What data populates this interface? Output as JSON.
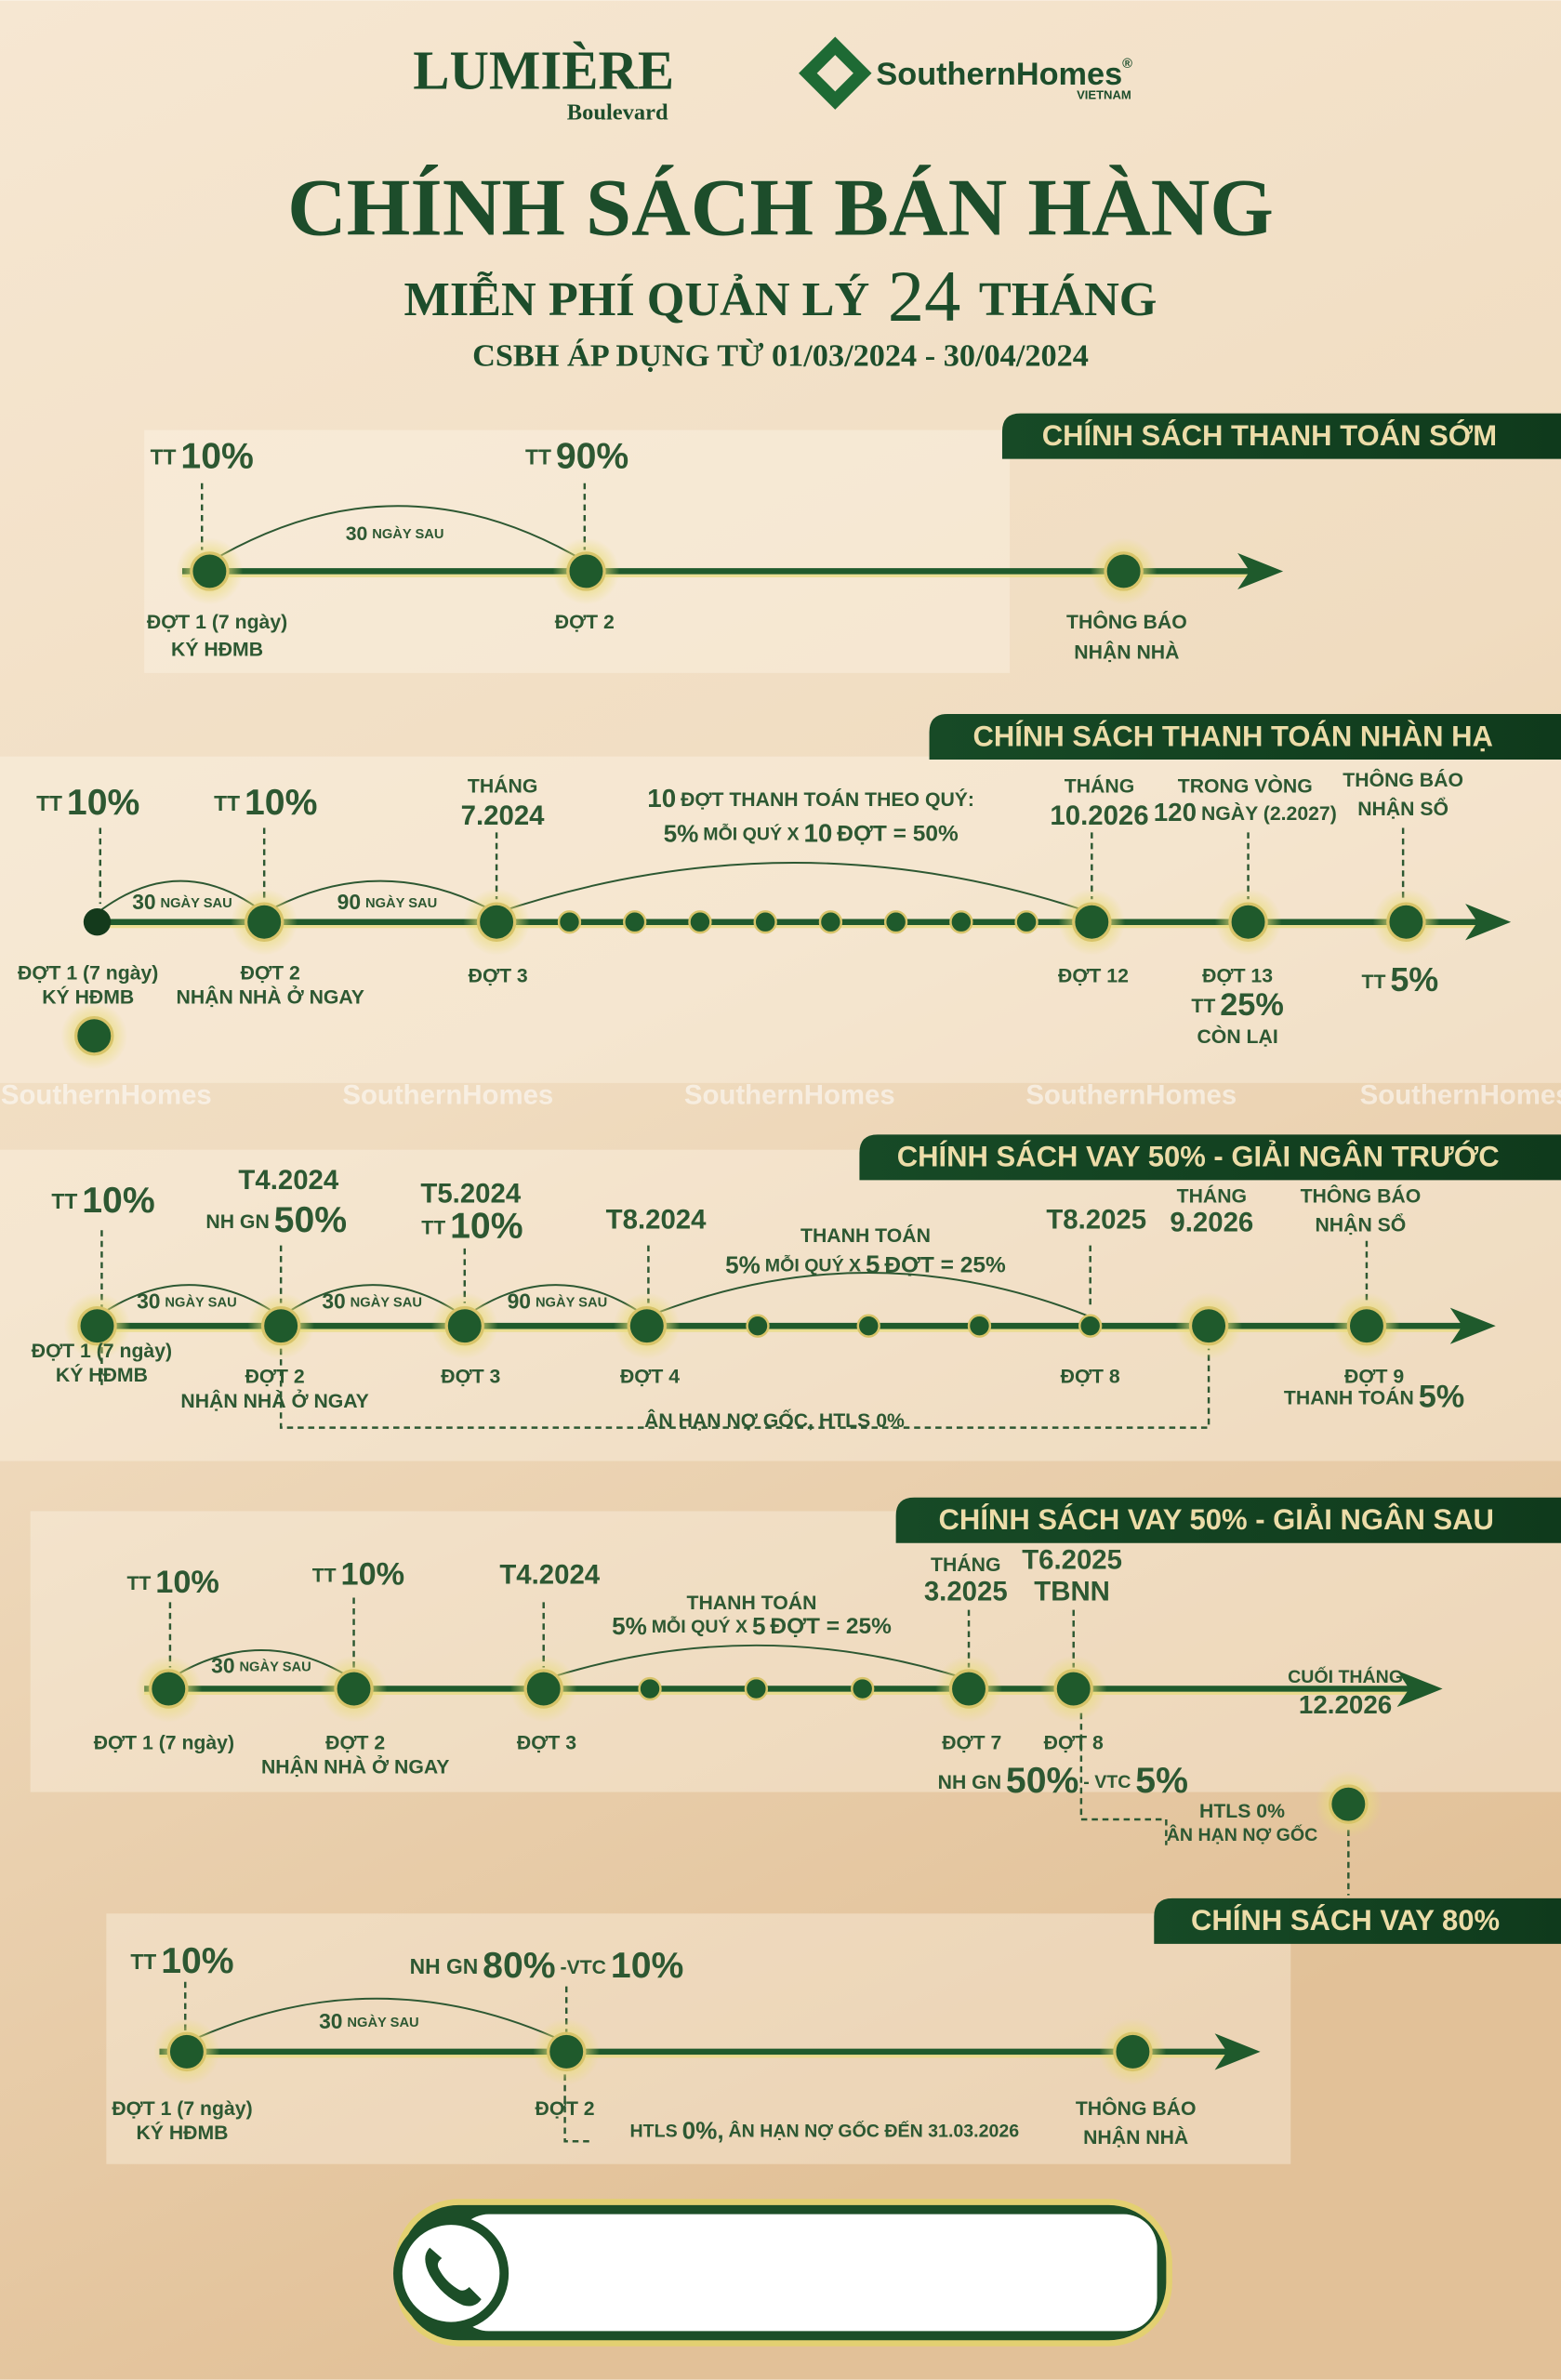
{
  "header": {
    "brand": "LUMIÈRE",
    "brand_sub": "Boulevard",
    "partner": "SouthernHomes",
    "partner_mark": "®",
    "partner_sub": "VIETNAM",
    "title": "CHÍNH SÁCH BÁN HÀNG",
    "subtitle_a": "MIỄN PHÍ QUẢN LÝ",
    "subtitle_num": "24",
    "subtitle_b": "THÁNG",
    "period": "CSBH ÁP DỤNG TỪ 01/03/2024 - 30/04/2024"
  },
  "watermark": "SouthernHomes",
  "sections": [
    {
      "title": "CHÍNH SÁCH THANH TOÁN SỚM",
      "texts": [
        "TT",
        "10%",
        "TT",
        "90%",
        "30",
        "NGÀY SAU",
        "ĐỢT 1 (7 ngày)",
        "KÝ HĐMB",
        "ĐỢT 2",
        "THÔNG BÁO",
        "NHẬN NHÀ"
      ]
    },
    {
      "title": "CHÍNH SÁCH THANH TOÁN NHÀN HẠ",
      "texts": [
        "TT",
        "10%",
        "TT",
        "10%",
        "THÁNG",
        "7.2024",
        "10",
        "ĐỢT THANH TOÁN THEO QUÝ:",
        "5%",
        "MỖI QUÝ X",
        "10",
        "ĐỢT = 50%",
        "THÁNG",
        "10.2026",
        "TRONG VÒNG",
        "120",
        "NGÀY (2.2027)",
        "THÔNG BÁO",
        "NHẬN SỔ",
        "30",
        "NGÀY SAU",
        "90",
        "NGÀY SAU",
        "ĐỢT 1 (7 ngày)",
        "KÝ HĐMB",
        "ĐỢT 2",
        "NHẬN NHÀ Ở NGAY",
        "ĐỢT 3",
        "ĐỢT 12",
        "ĐỢT 13",
        "TT",
        "25%",
        "CÒN LẠI",
        "TT",
        "5%"
      ]
    },
    {
      "title": "CHÍNH SÁCH VAY 50% - GIẢI NGÂN TRƯỚC",
      "texts": [
        "TT",
        "10%",
        "T4.2024",
        "NH GN",
        "50%",
        "T5.2024",
        "TT",
        "10%",
        "T8.2024",
        "THANH TOÁN",
        "5%",
        "MỖI QUÝ X",
        "5",
        "ĐỢT = 25%",
        "T8.2025",
        "THÁNG",
        "9.2026",
        "THÔNG BÁO",
        "NHẬN SỔ",
        "30",
        "NGÀY SAU",
        "30",
        "NGÀY SAU",
        "90",
        "NGÀY SAU",
        "ĐỢT 1 (7 ngày)",
        "KÝ HĐMB",
        "ĐỢT 2",
        "NHẬN NHÀ Ở NGAY",
        "ĐỢT 3",
        "ĐỢT 4",
        "ĐỢT 8",
        "ĐỢT 9",
        "THANH TOÁN",
        "5%",
        "ÂN HẠN NỢ GỐC, HTLS 0%"
      ]
    },
    {
      "title": "CHÍNH SÁCH VAY 50% - GIẢI NGÂN SAU",
      "texts": [
        "TT",
        "10%",
        "TT",
        "10%",
        "T4.2024",
        "THANH TOÁN",
        "5%",
        "MỖI QUÝ X",
        "5",
        "ĐỢT = 25%",
        "THÁNG",
        "3.2025",
        "T6.2025",
        "TBNN",
        "30",
        "NGÀY SAU",
        "ĐỢT 1 (7 ngày)",
        "ĐỢT 2",
        "NHẬN NHÀ Ở NGAY",
        "ĐỢT 3",
        "ĐỢT 7",
        "ĐỢT 8",
        "CUỐI THÁNG",
        "12.2026",
        "NH GN",
        "50%",
        "- VTC",
        "5%",
        "HTLS 0%",
        "ÂN HẠN NỢ GỐC"
      ]
    },
    {
      "title": "CHÍNH SÁCH VAY 80%",
      "texts": [
        "TT",
        "10%",
        "NH GN",
        "80%",
        "-VTC",
        "10%",
        "30",
        "NGÀY SAU",
        "ĐỢT 1 (7 ngày)",
        "KÝ HĐMB",
        "ĐỢT 2",
        "HTLS",
        "0%,",
        "ÂN HẠN NỢ GỐC ĐẾN 31.03.2026",
        "THÔNG BÁO",
        "NHẬN NHÀ"
      ]
    }
  ]
}
